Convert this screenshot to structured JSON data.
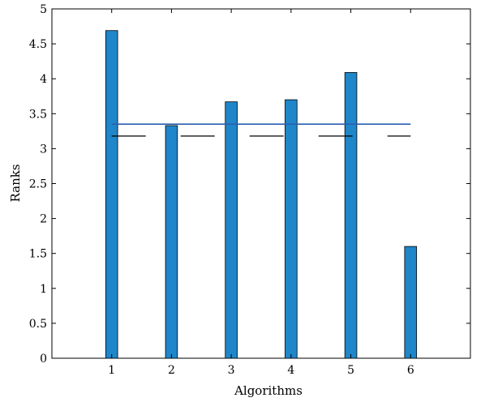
{
  "chart_data": {
    "type": "bar",
    "categories": [
      "1",
      "2",
      "3",
      "4",
      "5",
      "6"
    ],
    "values": [
      4.69,
      3.33,
      3.67,
      3.7,
      4.09,
      1.6
    ],
    "xlabel": "Algorithms",
    "ylabel": "Ranks",
    "ylim": [
      0,
      5
    ],
    "xlim": [
      0,
      7
    ],
    "yticks": [
      "0",
      "0.5",
      "1",
      "1.5",
      "2",
      "2.5",
      "3",
      "3.5",
      "4",
      "4.5",
      "5"
    ],
    "grid": false,
    "colors": {
      "bar": "#1f86c9",
      "bar_edge": "#000000",
      "hline": "#2a5fb0",
      "dash": "#000000"
    },
    "reference_lines": [
      {
        "style": "solid",
        "y": 3.35,
        "x_from": 1.0,
        "x_to": 6.0
      },
      {
        "style": "dashed",
        "y": 3.18,
        "x_from": 1.0,
        "x_to": 6.0
      }
    ]
  }
}
